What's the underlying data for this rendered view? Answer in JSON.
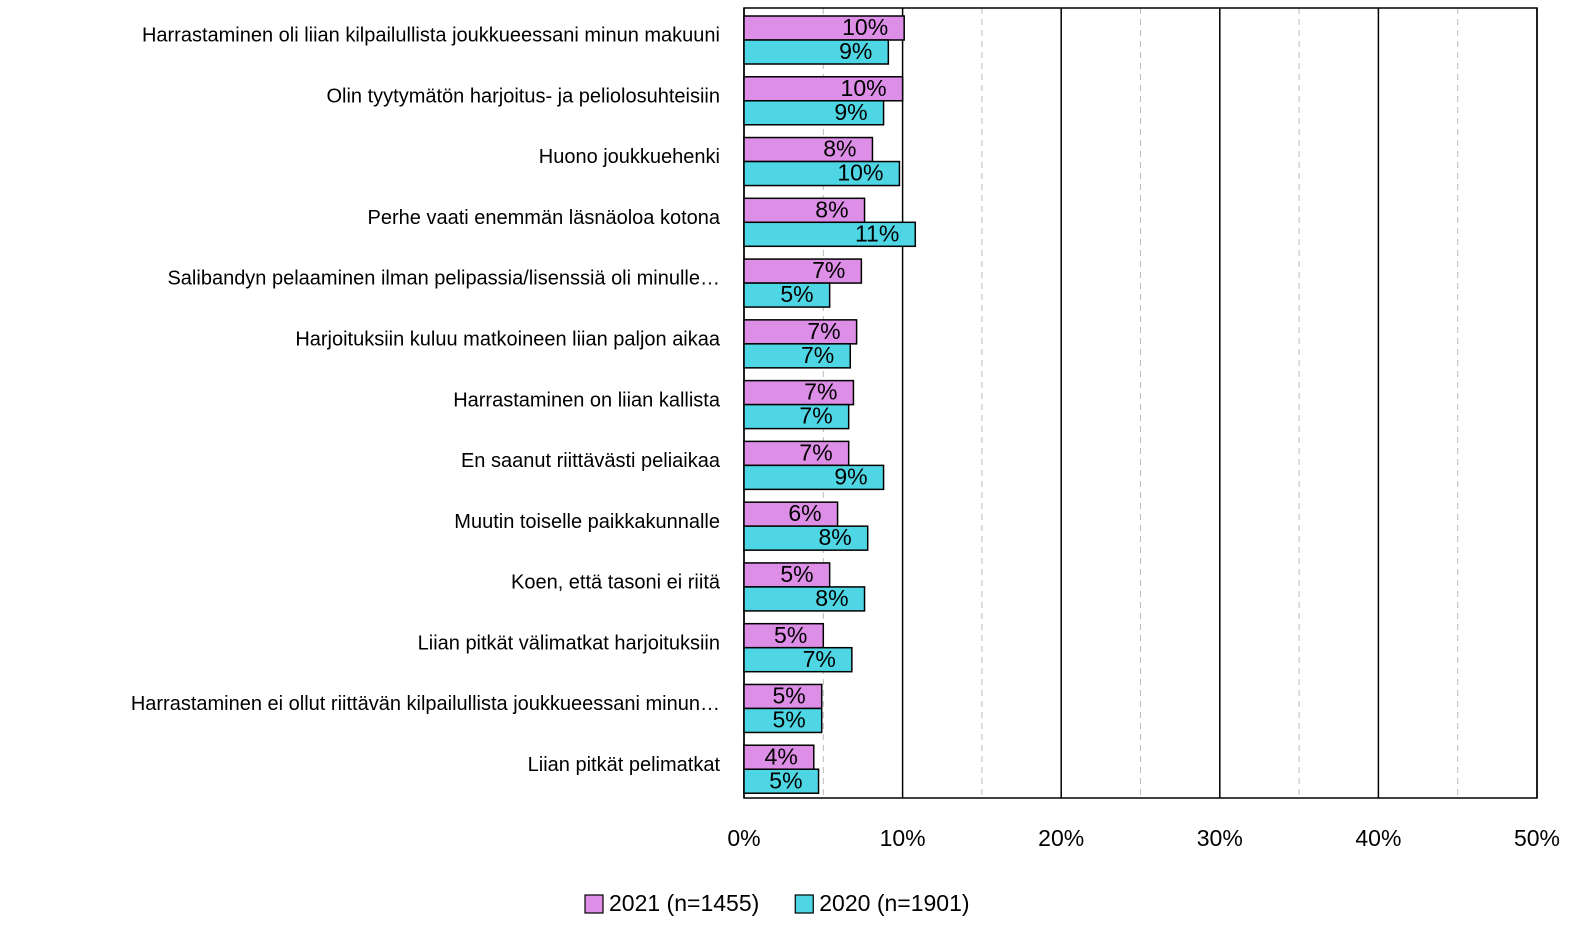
{
  "chart_data": {
    "type": "bar",
    "orientation": "horizontal",
    "categories": [
      "Harrastaminen oli liian kilpailullista joukkueessani minun makuuni",
      "Olin tyytymätön harjoitus- ja peliolosuhteisiin",
      "Huono joukkuehenki",
      "Perhe vaati enemmän läsnäoloa kotona",
      "Salibandyn pelaaminen ilman pelipassia/lisenssiä oli minulle…",
      "Harjoituksiin kuluu matkoineen liian paljon aikaa",
      "Harrastaminen on liian kallista",
      "En saanut riittävästi peliaikaa",
      "Muutin toiselle paikkakunnalle",
      "Koen, että tasoni ei riitä",
      "Liian pitkät välimatkat harjoituksiin",
      "Harrastaminen ei ollut riittävän kilpailullista joukkueessani minun…",
      "Liian pitkät pelimatkat"
    ],
    "series": [
      {
        "name": "2021 (n=1455)",
        "color": "#dd8ee6",
        "values": [
          10.1,
          10.0,
          8.1,
          7.6,
          7.4,
          7.1,
          6.9,
          6.6,
          5.9,
          5.4,
          5.0,
          4.9,
          4.4
        ],
        "value_labels": [
          "10%",
          "10%",
          "8%",
          "8%",
          "7%",
          "7%",
          "7%",
          "7%",
          "6%",
          "5%",
          "5%",
          "5%",
          "4%"
        ]
      },
      {
        "name": "2020 (n=1901)",
        "color": "#4fd6e4",
        "values": [
          9.1,
          8.8,
          9.8,
          10.8,
          5.4,
          6.7,
          6.6,
          8.8,
          7.8,
          7.6,
          6.8,
          4.9,
          4.7
        ],
        "value_labels": [
          "9%",
          "9%",
          "10%",
          "11%",
          "5%",
          "7%",
          "7%",
          "9%",
          "8%",
          "8%",
          "7%",
          "5%",
          "5%"
        ]
      }
    ],
    "xlim": [
      0,
      50
    ],
    "xticks": [
      {
        "value": 0,
        "label": "0%"
      },
      {
        "value": 10,
        "label": "10%"
      },
      {
        "value": 20,
        "label": "20%"
      },
      {
        "value": 30,
        "label": "30%"
      },
      {
        "value": 40,
        "label": "40%"
      },
      {
        "value": 50,
        "label": "50%"
      }
    ],
    "minor_xticks": [
      5,
      15,
      25,
      35,
      45
    ],
    "grid": true,
    "legend": "bottom"
  }
}
